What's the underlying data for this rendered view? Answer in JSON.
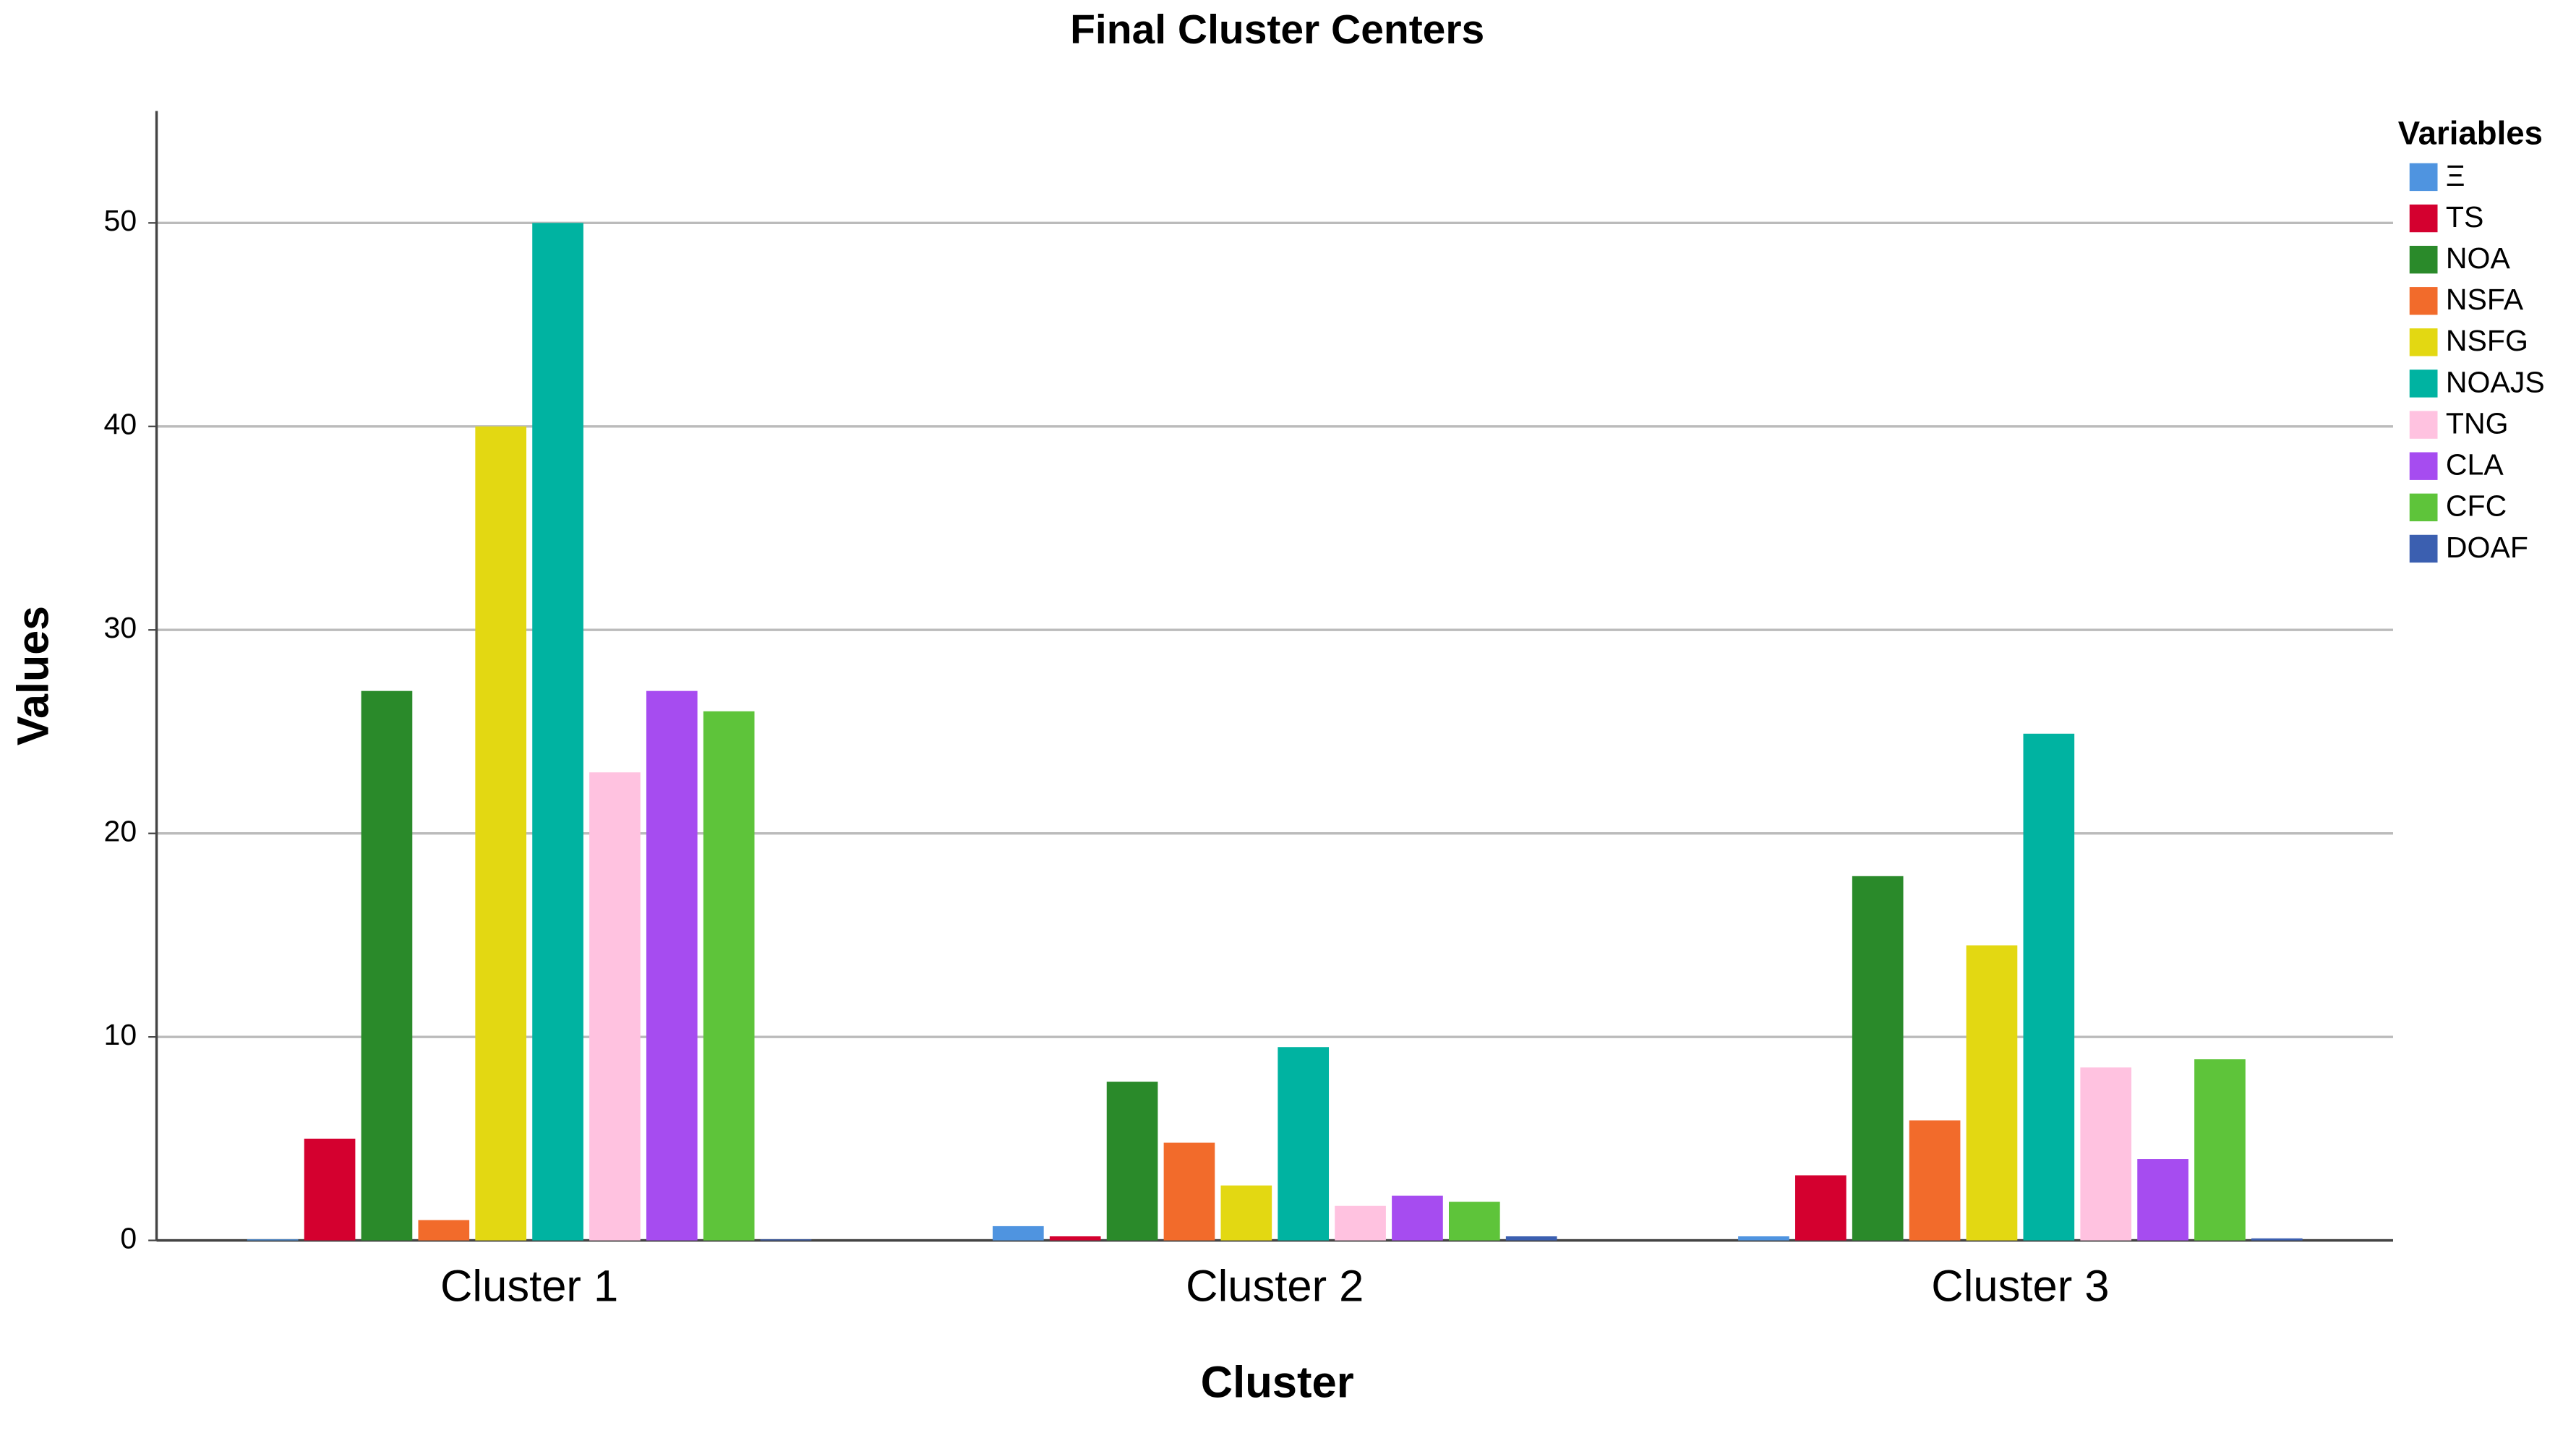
{
  "chart_data": {
    "type": "bar",
    "title": "Final Cluster Centers",
    "x_label": "Cluster",
    "y_label": "Values",
    "categories": [
      "Cluster 1",
      "Cluster 2",
      "Cluster 3"
    ],
    "legend_title": "Variables",
    "series": [
      {
        "name": "Ξ",
        "color": "#4f94e0",
        "values": [
          0.05,
          0.7,
          0.2
        ]
      },
      {
        "name": "TS",
        "color": "#d4002f",
        "values": [
          5,
          0.2,
          3.2
        ]
      },
      {
        "name": "NOA",
        "color": "#2a8a2a",
        "values": [
          27,
          7.8,
          17.9
        ]
      },
      {
        "name": "NSFA",
        "color": "#f26b2b",
        "values": [
          1,
          4.8,
          5.9
        ]
      },
      {
        "name": "NSFG",
        "color": "#e3d812",
        "values": [
          40,
          2.7,
          14.5
        ]
      },
      {
        "name": "NOAJS",
        "color": "#00b3a1",
        "values": [
          50,
          9.5,
          24.9
        ]
      },
      {
        "name": "TNG",
        "color": "#ffc2e0",
        "values": [
          23,
          1.7,
          8.5
        ]
      },
      {
        "name": "CLA",
        "color": "#a64cf0",
        "values": [
          27,
          2.2,
          4.0
        ]
      },
      {
        "name": "CFC",
        "color": "#5ec43a",
        "values": [
          26,
          1.9,
          8.9
        ]
      },
      {
        "name": "DOAF",
        "color": "#3b5fb0",
        "values": [
          0.05,
          0.2,
          0.1
        ]
      }
    ],
    "ylim": [
      0,
      55.5
    ],
    "yticks": [
      0,
      10,
      20,
      30,
      40,
      50
    ],
    "grid": true,
    "legend": "right"
  }
}
